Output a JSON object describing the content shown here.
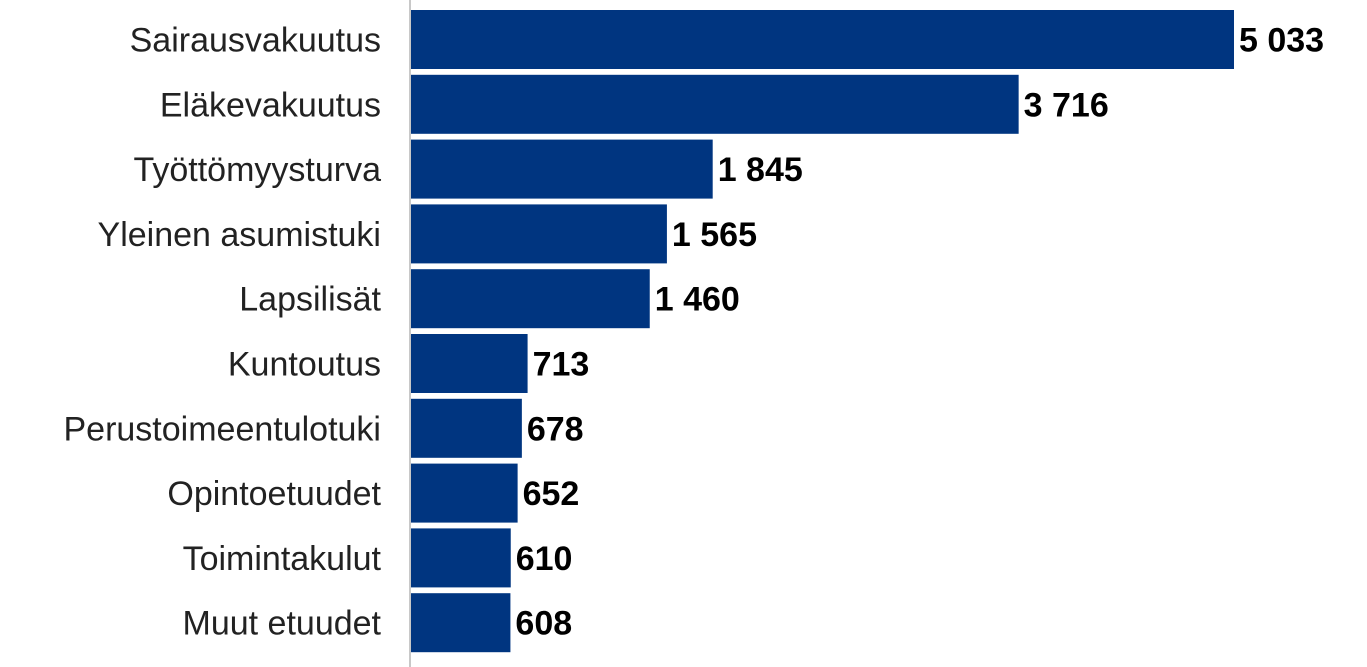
{
  "chart_data": {
    "type": "bar",
    "orientation": "horizontal",
    "categories": [
      "Sairausvakuutus",
      "Eläkevakuutus",
      "Työttömyysturva",
      "Yleinen asumistuki",
      "Lapsilisät",
      "Kuntoutus",
      "Perustoimeentulotuki",
      "Opintoetuudet",
      "Toimintakulut",
      "Muut etuudet"
    ],
    "values": [
      5033,
      3716,
      1845,
      1565,
      1460,
      713,
      678,
      652,
      610,
      608
    ],
    "value_labels": [
      "5 033",
      "3 716",
      "1 845",
      "1 565",
      "1 460",
      "713",
      "678",
      "652",
      "610",
      "608"
    ],
    "title": "",
    "xlabel": "",
    "ylabel": "",
    "xlim": [
      0,
      5033
    ],
    "grid": false,
    "legend": "none",
    "bar_color": "#003580",
    "axis_color": "#c8c8c8"
  }
}
